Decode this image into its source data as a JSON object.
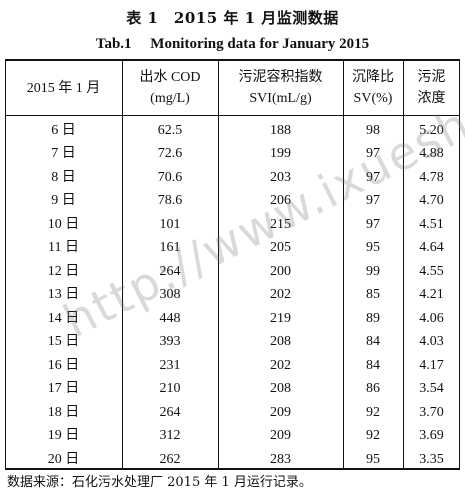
{
  "caption": {
    "cn": "表 1　2015 年 1 月监测数据",
    "en": "Tab.1　 Monitoring data for January 2015"
  },
  "columns": [
    {
      "line1": "2015 年 1 月",
      "line2": ""
    },
    {
      "line1": "出水 COD",
      "line2": "(mg/L)"
    },
    {
      "line1": "污泥容积指数",
      "line2": "SVI(mL/g)"
    },
    {
      "line1": "沉降比",
      "line2": "SV(%)"
    },
    {
      "line1": "污泥",
      "line2": "浓度"
    }
  ],
  "rows": [
    [
      "6 日",
      "62.5",
      "188",
      "98",
      "5.20"
    ],
    [
      "7 日",
      "72.6",
      "199",
      "97",
      "4.88"
    ],
    [
      "8 日",
      "70.6",
      "203",
      "97",
      "4.78"
    ],
    [
      "9 日",
      "78.6",
      "206",
      "97",
      "4.70"
    ],
    [
      "10 日",
      "101",
      "215",
      "97",
      "4.51"
    ],
    [
      "11 日",
      "161",
      "205",
      "95",
      "4.64"
    ],
    [
      "12 日",
      "264",
      "200",
      "99",
      "4.55"
    ],
    [
      "13 日",
      "308",
      "202",
      "85",
      "4.21"
    ],
    [
      "14 日",
      "448",
      "219",
      "89",
      "4.06"
    ],
    [
      "15 日",
      "393",
      "208",
      "84",
      "4.03"
    ],
    [
      "16 日",
      "231",
      "202",
      "84",
      "4.17"
    ],
    [
      "17 日",
      "210",
      "208",
      "86",
      "3.54"
    ],
    [
      "18 日",
      "264",
      "209",
      "92",
      "3.70"
    ],
    [
      "19 日",
      "312",
      "209",
      "92",
      "3.69"
    ],
    [
      "20 日",
      "262",
      "283",
      "95",
      "3.35"
    ]
  ],
  "footnote": "数据来源：石化污水处理厂 2015 年 1 月运行记录。",
  "watermark": "http://www.ixueshu"
}
